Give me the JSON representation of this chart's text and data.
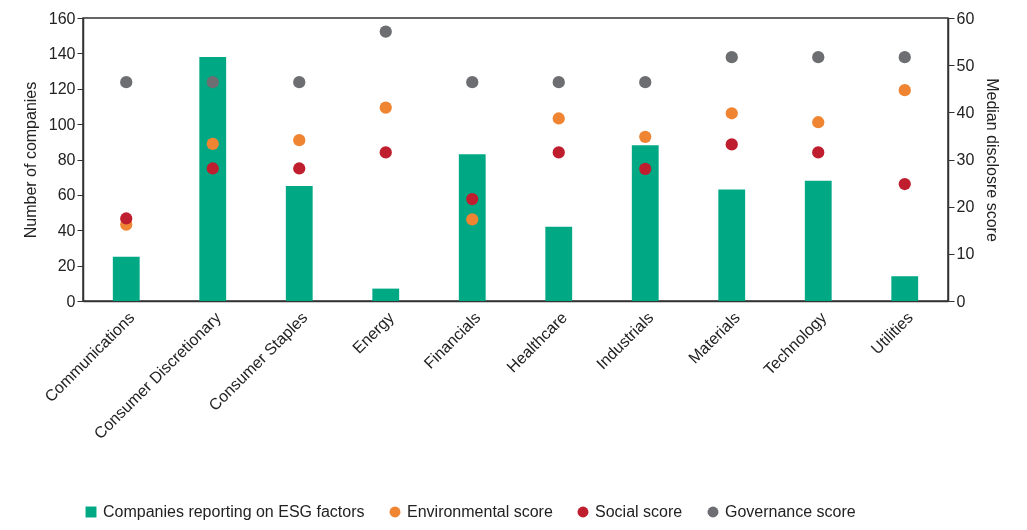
{
  "chart_data": {
    "type": "bar",
    "categories": [
      "Communications",
      "Consumer Discretionary",
      "Consumer Staples",
      "Energy",
      "Financials",
      "Healthcare",
      "Industrials",
      "Materials",
      "Technology",
      "Utilities"
    ],
    "series": [
      {
        "name": "Companies reporting on ESG factors",
        "color": "#00a884",
        "values": [
          25,
          138,
          65,
          7,
          83,
          42,
          88,
          63,
          68,
          14
        ]
      },
      {
        "name": "Environmental score",
        "type": "scatter",
        "axis": "y2",
        "color": "#ef8532",
        "values": [
          16.2,
          33.3,
          34.1,
          41,
          17.3,
          38.7,
          34.8,
          39.8,
          37.9,
          44.7
        ]
      },
      {
        "name": "Social score",
        "type": "scatter",
        "axis": "y2",
        "color": "#bf1e2e",
        "values": [
          17.5,
          28.1,
          28.1,
          31.5,
          21.6,
          31.5,
          28,
          33.2,
          31.5,
          24.8
        ]
      },
      {
        "name": "Governance score",
        "type": "scatter",
        "axis": "y2",
        "color": "#6d6e71",
        "values": [
          46.4,
          46.4,
          46.4,
          57.1,
          46.4,
          46.4,
          46.4,
          51.7,
          51.7,
          51.7
        ]
      }
    ],
    "ylabel": "Number of companies",
    "y2label": "Median disclosre score",
    "ylim": [
      0,
      160
    ],
    "yticks": [
      0,
      20,
      40,
      60,
      80,
      100,
      120,
      140,
      160
    ],
    "y2lim": [
      0,
      60
    ],
    "y2ticks": [
      0,
      10,
      20,
      30,
      40,
      50,
      60
    ],
    "legend": "bottom",
    "marker": "circle",
    "grid": false
  }
}
